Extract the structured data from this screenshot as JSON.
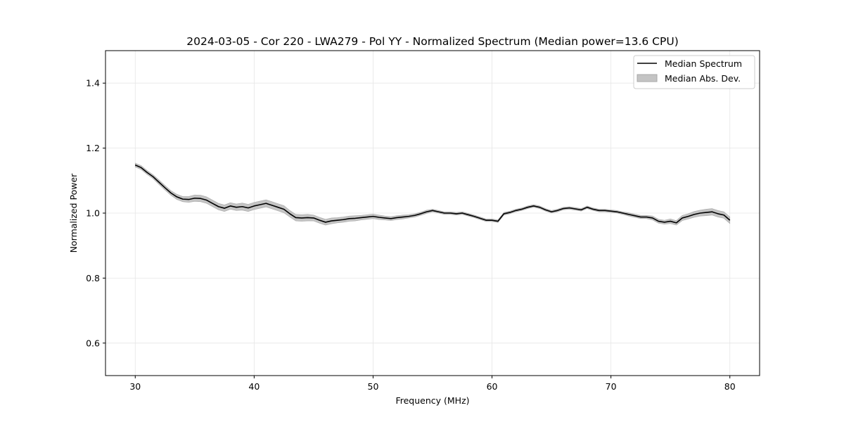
{
  "chart_data": {
    "type": "line",
    "title": "2024-03-05 - Cor 220 - LWA279 - Pol YY - Normalized Spectrum (Median power=13.6 CPU)",
    "xlabel": "Frequency (MHz)",
    "ylabel": "Normalized Power",
    "xlim": [
      27.5,
      82.5
    ],
    "ylim": [
      0.5,
      1.5
    ],
    "xticks": [
      30,
      40,
      50,
      60,
      70,
      80
    ],
    "yticks": [
      0.6,
      0.8,
      1.0,
      1.2,
      1.4
    ],
    "xtick_labels": [
      "30",
      "40",
      "50",
      "60",
      "70",
      "80"
    ],
    "ytick_labels": [
      "0.6",
      "0.8",
      "1.0",
      "1.2",
      "1.4"
    ],
    "grid": true,
    "legend_position": "top-right",
    "legend": [
      "Median Spectrum",
      "Median Abs. Dev."
    ],
    "colors": {
      "line": "#000000",
      "band": "#b0b0b0",
      "grid": "#e6e6e6"
    },
    "series": [
      {
        "name": "Median Spectrum",
        "x": [
          30.0,
          30.5,
          31.0,
          31.5,
          32.0,
          32.5,
          33.0,
          33.5,
          34.0,
          34.5,
          35.0,
          35.5,
          36.0,
          36.5,
          37.0,
          37.5,
          38.0,
          38.5,
          39.0,
          39.5,
          40.0,
          40.5,
          41.0,
          41.5,
          42.0,
          42.5,
          43.0,
          43.5,
          44.0,
          44.5,
          45.0,
          45.5,
          46.0,
          46.5,
          47.0,
          47.5,
          48.0,
          48.5,
          49.0,
          49.5,
          50.0,
          50.5,
          51.0,
          51.5,
          52.0,
          52.5,
          53.0,
          53.5,
          54.0,
          54.5,
          55.0,
          55.5,
          56.0,
          56.5,
          57.0,
          57.5,
          58.0,
          58.5,
          59.0,
          59.5,
          60.0,
          60.5,
          61.0,
          61.5,
          62.0,
          62.5,
          63.0,
          63.5,
          64.0,
          64.5,
          65.0,
          65.5,
          66.0,
          66.5,
          67.0,
          67.5,
          68.0,
          68.5,
          69.0,
          69.5,
          70.0,
          70.5,
          71.0,
          71.5,
          72.0,
          72.5,
          73.0,
          73.5,
          74.0,
          74.5,
          75.0,
          75.5,
          76.0,
          76.5,
          77.0,
          77.5,
          78.0,
          78.5,
          79.0,
          79.5,
          80.0
        ],
        "values": [
          1.148,
          1.14,
          1.125,
          1.112,
          1.095,
          1.078,
          1.062,
          1.05,
          1.043,
          1.042,
          1.046,
          1.045,
          1.04,
          1.03,
          1.02,
          1.015,
          1.022,
          1.018,
          1.02,
          1.016,
          1.022,
          1.026,
          1.03,
          1.024,
          1.018,
          1.012,
          0.998,
          0.986,
          0.985,
          0.986,
          0.985,
          0.978,
          0.972,
          0.976,
          0.978,
          0.98,
          0.983,
          0.984,
          0.986,
          0.988,
          0.99,
          0.987,
          0.985,
          0.983,
          0.986,
          0.988,
          0.99,
          0.993,
          0.998,
          1.004,
          1.008,
          1.004,
          1.0,
          1.0,
          0.998,
          1.0,
          0.995,
          0.99,
          0.984,
          0.978,
          0.978,
          0.975,
          0.998,
          1.002,
          1.008,
          1.012,
          1.018,
          1.022,
          1.018,
          1.01,
          1.004,
          1.008,
          1.014,
          1.016,
          1.013,
          1.01,
          1.018,
          1.012,
          1.008,
          1.008,
          1.006,
          1.004,
          1.0,
          0.996,
          0.992,
          0.988,
          0.988,
          0.985,
          0.975,
          0.972,
          0.975,
          0.97,
          0.985,
          0.99,
          0.996,
          1.0,
          1.002,
          1.004,
          0.998,
          0.994,
          0.978
        ]
      },
      {
        "name": "Median Abs. Dev.",
        "x": [
          30.0,
          30.5,
          31.0,
          31.5,
          32.0,
          32.5,
          33.0,
          33.5,
          34.0,
          34.5,
          35.0,
          35.5,
          36.0,
          36.5,
          37.0,
          37.5,
          38.0,
          38.5,
          39.0,
          39.5,
          40.0,
          40.5,
          41.0,
          41.5,
          42.0,
          42.5,
          43.0,
          43.5,
          44.0,
          44.5,
          45.0,
          45.5,
          46.0,
          46.5,
          47.0,
          47.5,
          48.0,
          48.5,
          49.0,
          49.5,
          50.0,
          50.5,
          51.0,
          51.5,
          52.0,
          52.5,
          53.0,
          53.5,
          54.0,
          54.5,
          55.0,
          55.5,
          56.0,
          56.5,
          57.0,
          57.5,
          58.0,
          58.5,
          59.0,
          59.5,
          60.0,
          60.5,
          61.0,
          61.5,
          62.0,
          62.5,
          63.0,
          63.5,
          64.0,
          64.5,
          65.0,
          65.5,
          66.0,
          66.5,
          67.0,
          67.5,
          68.0,
          68.5,
          69.0,
          69.5,
          70.0,
          70.5,
          71.0,
          71.5,
          72.0,
          72.5,
          73.0,
          73.5,
          74.0,
          74.5,
          75.0,
          75.5,
          76.0,
          76.5,
          77.0,
          77.5,
          78.0,
          78.5,
          79.0,
          79.5,
          80.0
        ],
        "values": [
          0.006,
          0.006,
          0.006,
          0.006,
          0.007,
          0.007,
          0.007,
          0.008,
          0.008,
          0.009,
          0.01,
          0.01,
          0.01,
          0.01,
          0.01,
          0.01,
          0.01,
          0.01,
          0.011,
          0.011,
          0.011,
          0.011,
          0.011,
          0.011,
          0.011,
          0.011,
          0.01,
          0.01,
          0.01,
          0.01,
          0.009,
          0.009,
          0.009,
          0.009,
          0.008,
          0.008,
          0.008,
          0.008,
          0.007,
          0.007,
          0.007,
          0.007,
          0.006,
          0.006,
          0.006,
          0.006,
          0.005,
          0.005,
          0.005,
          0.005,
          0.004,
          0.004,
          0.004,
          0.004,
          0.004,
          0.004,
          0.004,
          0.004,
          0.004,
          0.004,
          0.004,
          0.004,
          0.004,
          0.004,
          0.004,
          0.004,
          0.004,
          0.004,
          0.004,
          0.004,
          0.004,
          0.004,
          0.004,
          0.004,
          0.004,
          0.004,
          0.004,
          0.004,
          0.004,
          0.004,
          0.004,
          0.004,
          0.004,
          0.005,
          0.005,
          0.005,
          0.005,
          0.006,
          0.006,
          0.006,
          0.007,
          0.007,
          0.008,
          0.008,
          0.009,
          0.009,
          0.01,
          0.01,
          0.01,
          0.01,
          0.01
        ]
      }
    ]
  }
}
